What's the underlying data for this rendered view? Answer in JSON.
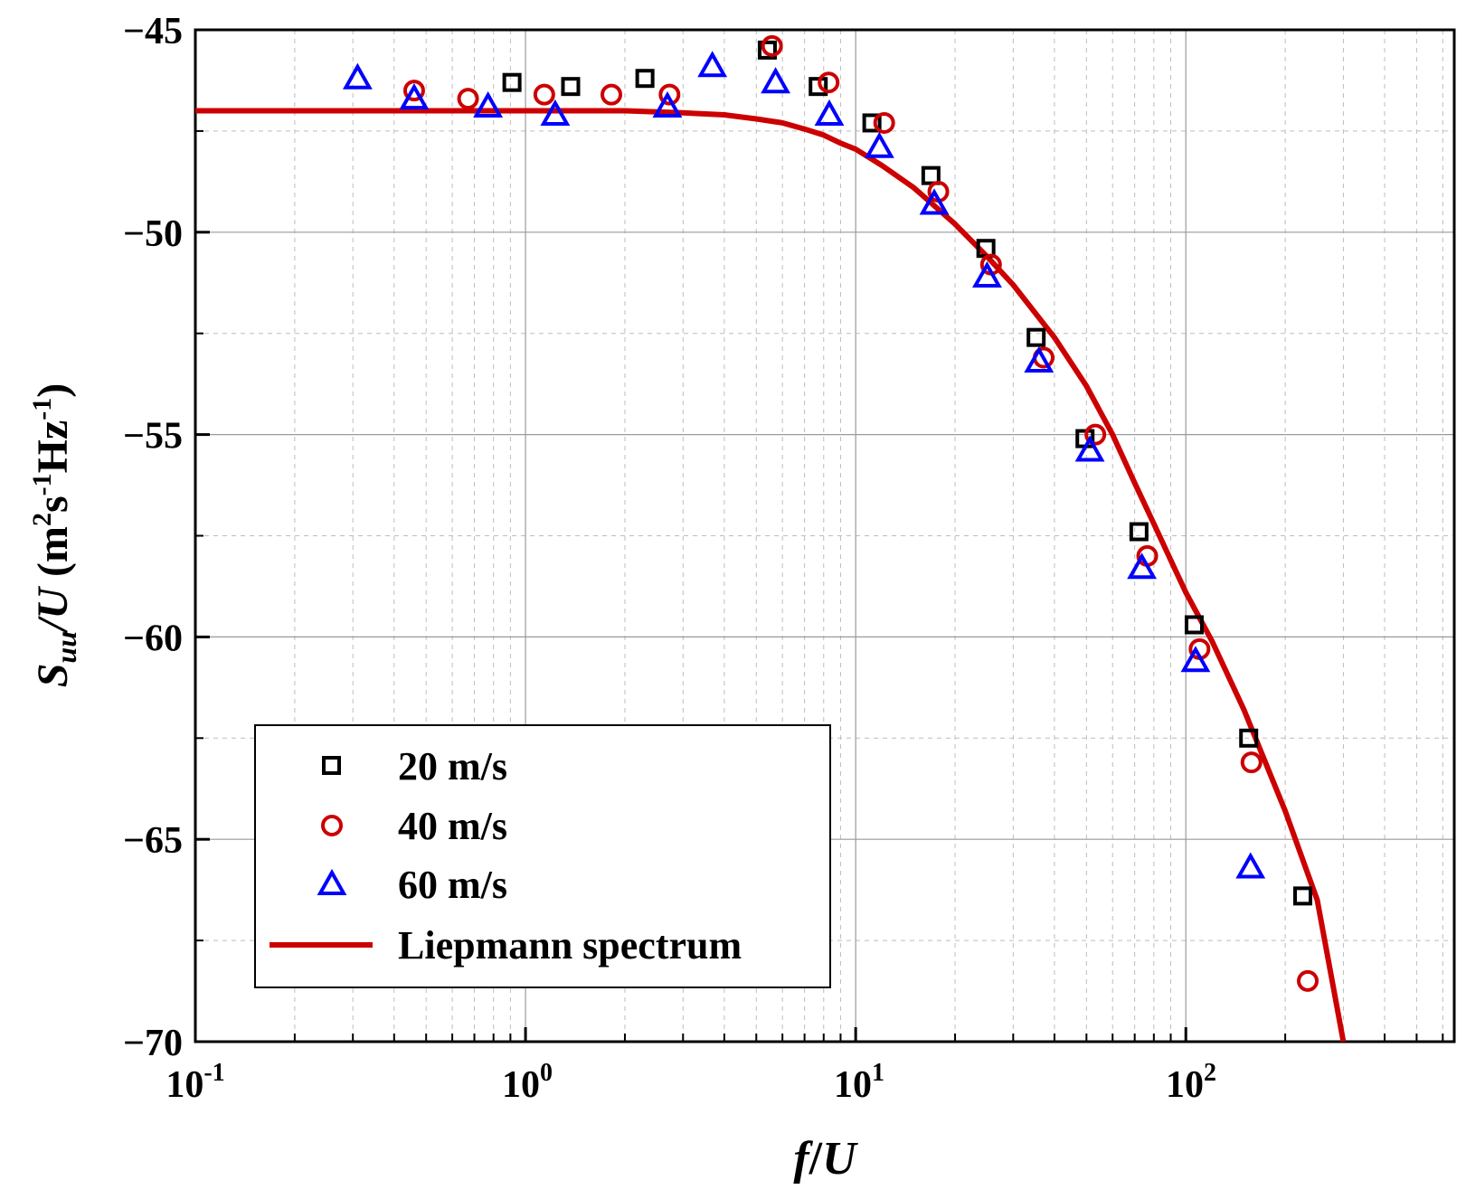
{
  "chart_data": {
    "type": "scatter",
    "x_scale": "log",
    "xlim": [
      0.1,
      650
    ],
    "ylim": [
      -70,
      -45
    ],
    "yticks": [
      -45,
      -50,
      -55,
      -60,
      -65,
      -70
    ],
    "xtick_bases": [
      "10",
      "10",
      "10",
      "10"
    ],
    "xtick_exponents": [
      "-1",
      "0",
      "1",
      "2"
    ],
    "xlabel_f": "f",
    "xlabel_sep": "/",
    "xlabel_u": "U",
    "ylabel_s": "S",
    "ylabel_sub": "uu",
    "ylabel_div": "/U ",
    "ylabel_units_open": "(m",
    "ylabel_sup1": "2",
    "ylabel_units_mid": "s",
    "ylabel_sup2": "-1",
    "ylabel_units_hz": "Hz",
    "ylabel_sup3": "-1",
    "ylabel_units_close": ")",
    "grid": true,
    "legend_position": "bottom-left",
    "series": [
      {
        "name": "20 m/s",
        "marker": "square",
        "color": "#000000",
        "x": [
          0.91,
          1.37,
          2.3,
          5.4,
          7.7,
          11.2,
          16.9,
          24.8,
          35.2,
          49.5,
          72.1,
          106,
          155,
          226
        ],
        "y": [
          -46.3,
          -46.4,
          -46.2,
          -45.5,
          -46.4,
          -47.3,
          -48.6,
          -50.4,
          -52.6,
          -55.1,
          -57.4,
          -59.7,
          -62.5,
          -66.4
        ]
      },
      {
        "name": "40 m/s",
        "marker": "circle",
        "color": "#cc0000",
        "x": [
          0.46,
          0.67,
          1.14,
          1.82,
          2.73,
          5.58,
          8.28,
          12.2,
          17.8,
          25.7,
          37.1,
          53.2,
          76.4,
          110,
          158,
          234
        ],
        "y": [
          -46.5,
          -46.7,
          -46.6,
          -46.6,
          -46.6,
          -45.4,
          -46.3,
          -47.3,
          -49.0,
          -50.8,
          -53.1,
          -55.0,
          -58.0,
          -60.3,
          -63.1,
          -68.5
        ]
      },
      {
        "name": "60 m/s",
        "marker": "triangle",
        "color": "#0000ff",
        "x": [
          0.31,
          0.46,
          0.77,
          1.23,
          2.69,
          3.68,
          5.72,
          8.32,
          11.8,
          17.3,
          25.0,
          35.9,
          51.2,
          73.6,
          107,
          157
        ],
        "y": [
          -46.2,
          -46.7,
          -46.9,
          -47.1,
          -46.9,
          -45.9,
          -46.3,
          -47.1,
          -47.9,
          -49.3,
          -51.1,
          -53.2,
          -55.4,
          -58.3,
          -60.6,
          -65.7
        ]
      }
    ],
    "model": {
      "name": "Liepmann spectrum",
      "color": "#cc0000",
      "x": [
        0.1,
        0.2,
        0.5,
        1,
        1.5,
        2,
        3,
        4,
        5,
        6,
        7,
        8,
        9,
        10,
        12,
        15,
        20,
        25,
        30,
        40,
        50,
        60,
        70,
        80,
        90,
        100,
        120,
        150,
        200,
        250,
        300
      ],
      "y": [
        -47.0,
        -47.0,
        -47.0,
        -47.0,
        -47.0,
        -47.0,
        -47.05,
        -47.1,
        -47.2,
        -47.3,
        -47.45,
        -47.6,
        -47.8,
        -47.95,
        -48.35,
        -48.9,
        -49.8,
        -50.6,
        -51.3,
        -52.6,
        -53.8,
        -55.0,
        -56.2,
        -57.2,
        -58.1,
        -58.9,
        -60.1,
        -61.8,
        -64.3,
        -66.5,
        -70.0
      ]
    }
  }
}
